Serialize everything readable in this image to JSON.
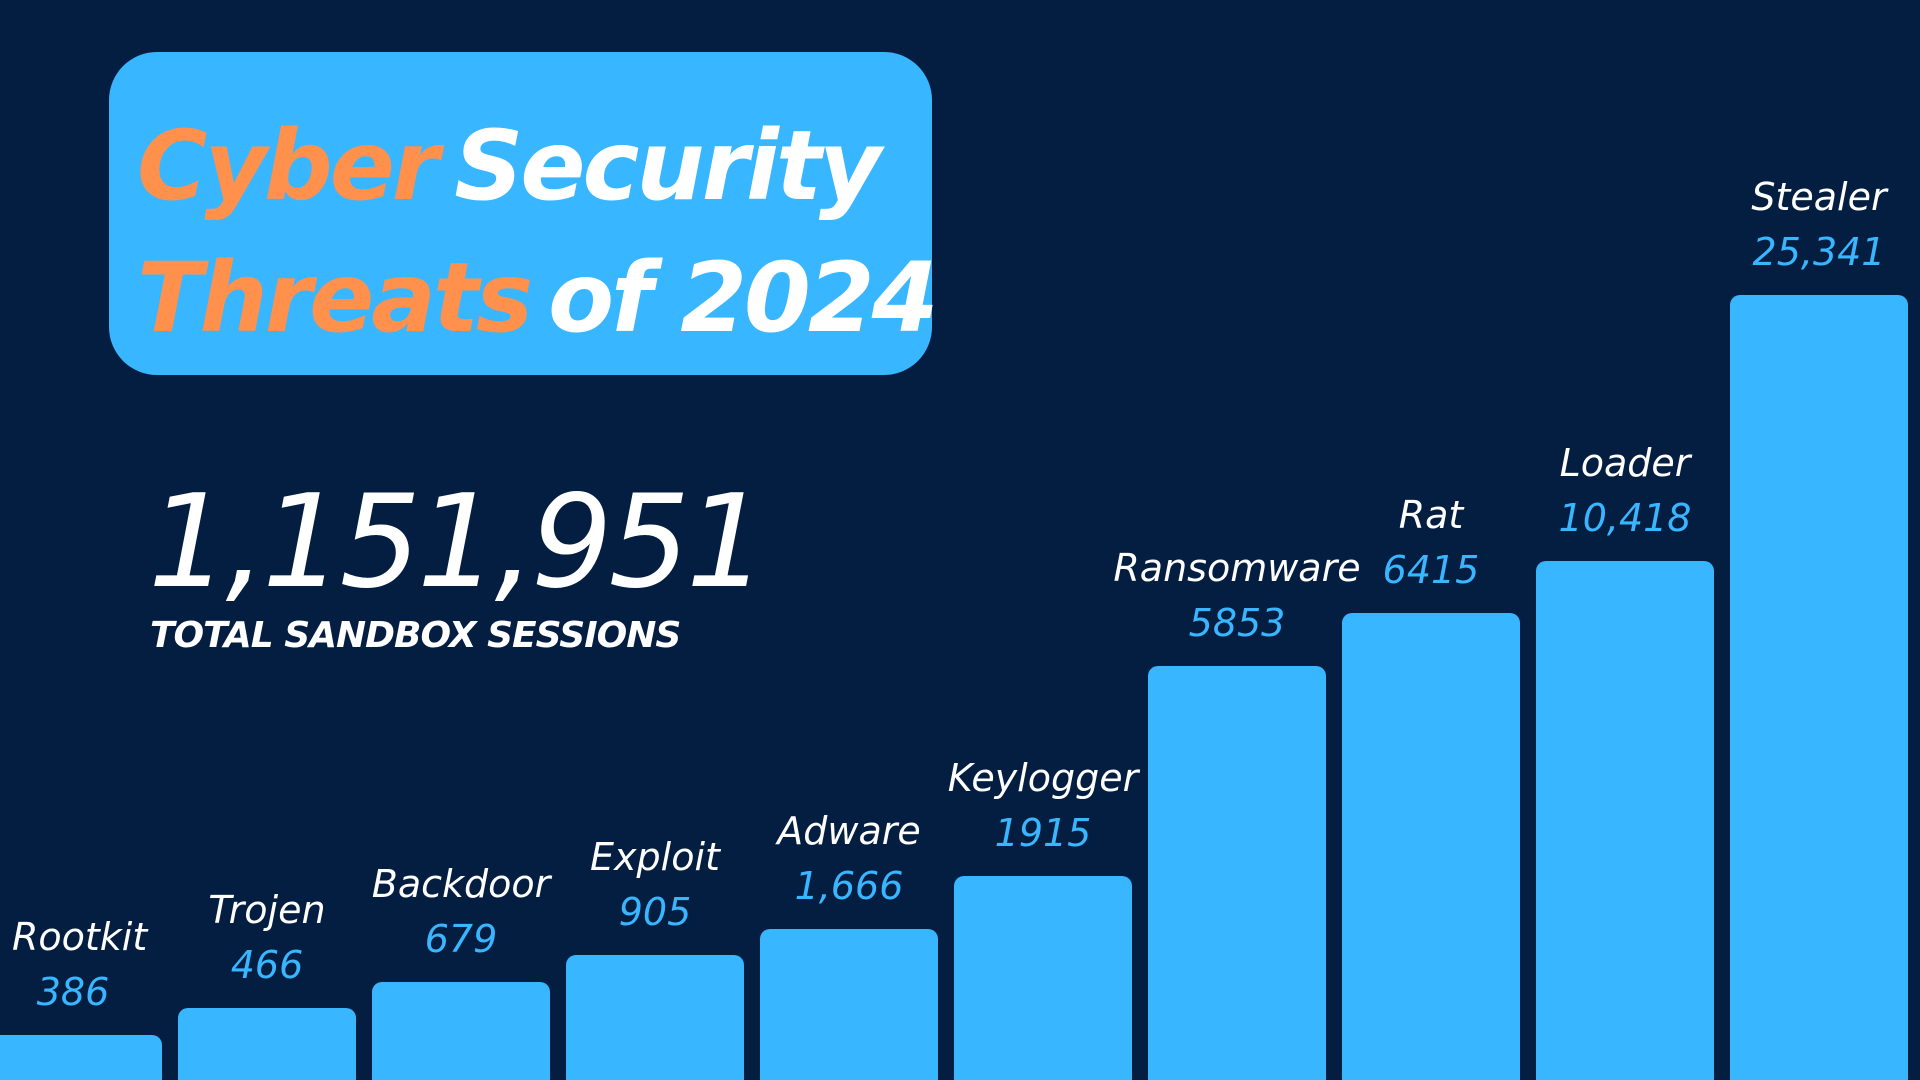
{
  "colors": {
    "background": "#041e42",
    "bar": "#38b6ff",
    "title_box": "#38b6ff",
    "title_highlight": "#ff914d",
    "title_text": "#ffffff",
    "category_label": "#ffffff",
    "value_label": "#38b6ff",
    "total_text": "#ffffff"
  },
  "title": {
    "line1": {
      "highlight": "Cyber",
      "rest": "Security"
    },
    "line2": {
      "highlight": "Threats",
      "rest": "of 2024"
    }
  },
  "summary": {
    "total_value": "1,151,951",
    "total_label": "TOTAL SANDBOX SESSIONS"
  },
  "chart_data": {
    "type": "bar",
    "categories": [
      "Rootkit",
      "Trojen",
      "Backdoor",
      "Exploit",
      "Adware",
      "Keylogger",
      "Ransomware",
      "Rat",
      "Loader",
      "Stealer"
    ],
    "values": [
      386,
      466,
      679,
      905,
      1666,
      1915,
      5853,
      6415,
      10418,
      25341
    ],
    "value_labels": [
      "386",
      "466",
      "679",
      "905",
      "1,666",
      "1915",
      "5853",
      "6415",
      "10,418",
      "25,341"
    ],
    "xlabel": "",
    "ylabel": "",
    "grid": false,
    "legend": "none"
  }
}
